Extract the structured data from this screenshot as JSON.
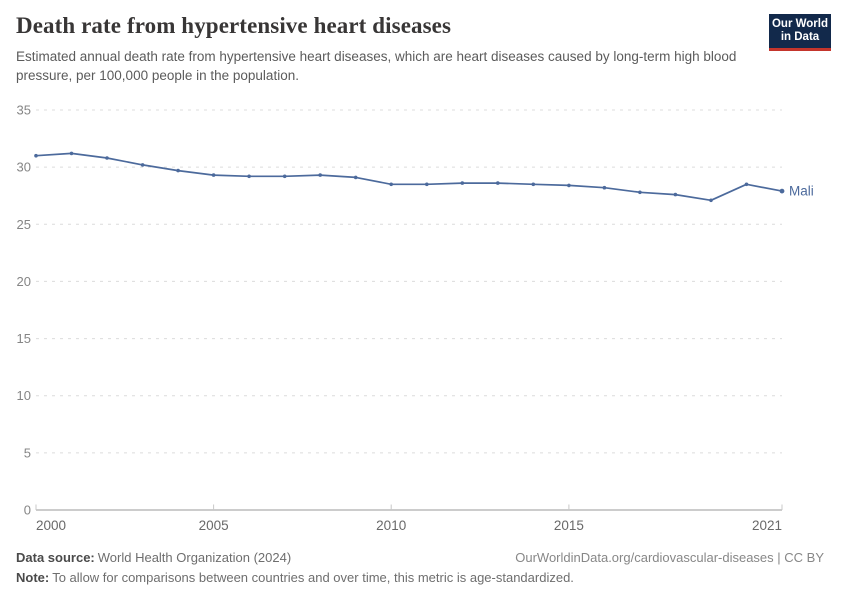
{
  "header": {
    "title": "Death rate from hypertensive heart diseases",
    "subtitle": "Estimated annual death rate from hypertensive heart diseases, which are heart diseases caused by long-term high blood pressure, per 100,000 people in the population.",
    "logo": {
      "line1": "Our World",
      "line2": "in Data"
    }
  },
  "chart_data": {
    "type": "line",
    "title": "Death rate from hypertensive heart diseases",
    "x": [
      2000,
      2001,
      2002,
      2003,
      2004,
      2005,
      2006,
      2007,
      2008,
      2009,
      2010,
      2011,
      2012,
      2013,
      2014,
      2015,
      2016,
      2017,
      2018,
      2019,
      2020,
      2021
    ],
    "series": [
      {
        "name": "Mali",
        "color": "#4c6a9c",
        "values": [
          31.0,
          31.2,
          30.8,
          30.2,
          29.7,
          29.3,
          29.2,
          29.2,
          29.3,
          29.1,
          28.5,
          28.5,
          28.6,
          28.6,
          28.5,
          28.4,
          28.2,
          27.8,
          27.6,
          27.1,
          28.5,
          27.9
        ]
      }
    ],
    "xlim": [
      2000,
      2021
    ],
    "ylim": [
      0,
      35
    ],
    "x_ticks": [
      2000,
      2005,
      2010,
      2015,
      2021
    ],
    "y_ticks": [
      0,
      5,
      10,
      15,
      20,
      25,
      30,
      35
    ],
    "xlabel": "",
    "ylabel": "",
    "grid": "horizontal-dashed",
    "legend_position": "end-of-line-label"
  },
  "footer": {
    "source_label": "Data source:",
    "source_text": "World Health Organization (2024)",
    "link_text": "OurWorldinData.org/cardiovascular-diseases | CC BY",
    "note_label": "Note:",
    "note_text": "To allow for comparisons between countries and over time, this metric is age-standardized."
  },
  "colors": {
    "line": "#4c6a9c",
    "grid": "#dcdcdc",
    "axis": "#9a9a9a",
    "tick": "#c8c8c8",
    "y_label": "#858585",
    "x_label": "#696969",
    "title": "#383636",
    "subtitle": "#5b5b5b",
    "logo_bg": "#12294b",
    "logo_bar": "#c4352c"
  }
}
